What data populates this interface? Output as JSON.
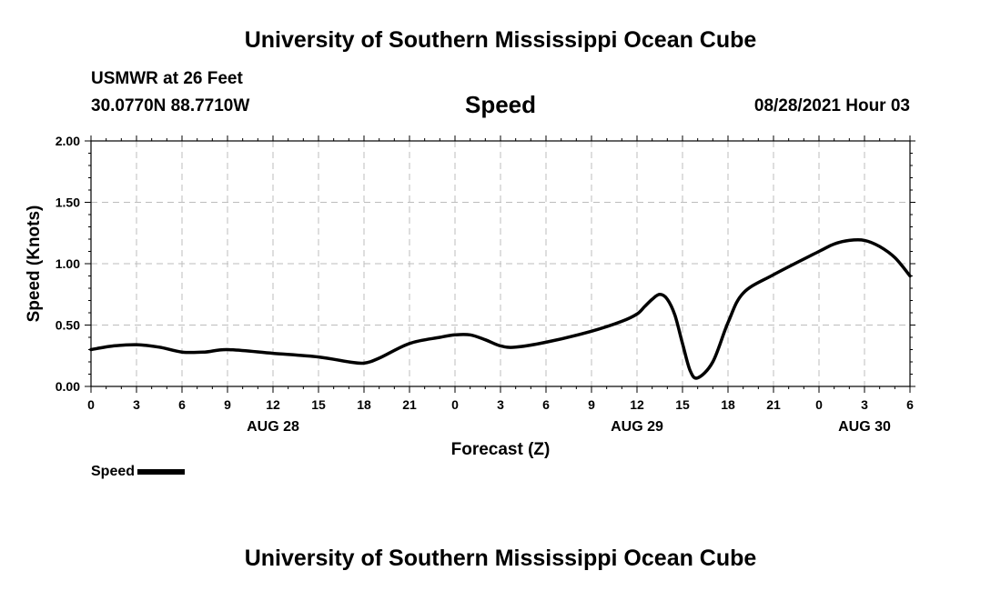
{
  "header": {
    "title": "University of Southern Mississippi Ocean Cube",
    "station": "USMWR at 26 Feet",
    "coords": "30.0770N  88.7710W",
    "variable": "Speed",
    "datetime": "08/28/2021 Hour 03"
  },
  "footer": {
    "title": "University of Southern Mississippi Ocean Cube"
  },
  "legend": {
    "label": "Speed"
  },
  "chart_data": {
    "type": "line",
    "xlabel": "Forecast (Z)",
    "ylabel": "Speed (Knots)",
    "xlim": [
      0,
      54
    ],
    "ylim": [
      0,
      2
    ],
    "x_ticks": [
      "0",
      "3",
      "6",
      "9",
      "12",
      "15",
      "18",
      "21",
      "0",
      "3",
      "6",
      "9",
      "12",
      "15",
      "18",
      "21",
      "0",
      "3",
      "6"
    ],
    "y_ticks": [
      "0.00",
      "0.50",
      "1.00",
      "1.50",
      "2.00"
    ],
    "date_labels": [
      {
        "text": "AUG 28",
        "at": 12
      },
      {
        "text": "AUG 29",
        "at": 36
      },
      {
        "text": "AUG 30",
        "at": 51
      }
    ],
    "grid": true,
    "legend_position": "bottom-left",
    "series": [
      {
        "name": "Speed",
        "color": "#000000",
        "x": [
          0,
          1.5,
          3,
          4.5,
          6,
          7.5,
          9,
          12,
          15,
          17,
          18,
          19,
          21,
          23,
          24,
          25,
          26,
          27,
          28,
          30,
          33,
          35,
          36,
          36.5,
          37,
          37.5,
          38,
          38.5,
          39,
          39.5,
          40,
          41,
          42,
          43,
          45,
          48,
          49,
          50,
          51,
          52,
          53,
          54
        ],
        "values": [
          0.3,
          0.33,
          0.34,
          0.32,
          0.28,
          0.28,
          0.3,
          0.27,
          0.24,
          0.2,
          0.19,
          0.23,
          0.35,
          0.4,
          0.42,
          0.42,
          0.38,
          0.33,
          0.32,
          0.36,
          0.45,
          0.53,
          0.59,
          0.65,
          0.71,
          0.75,
          0.71,
          0.58,
          0.35,
          0.13,
          0.07,
          0.2,
          0.52,
          0.76,
          0.91,
          1.1,
          1.16,
          1.19,
          1.19,
          1.14,
          1.05,
          0.9
        ]
      }
    ]
  }
}
